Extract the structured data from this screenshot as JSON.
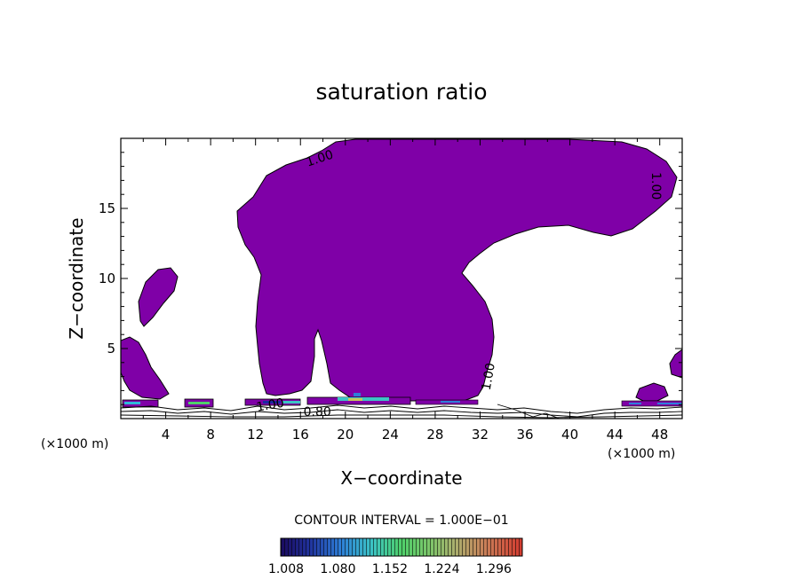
{
  "chart_data": {
    "type": "heatmap",
    "title": "saturation ratio",
    "xlabel": "X−coordinate",
    "ylabel": "Z−coordinate",
    "x_unit": "(×1000 m)",
    "z_unit": "(×1000 m)",
    "xlim": [
      0,
      50
    ],
    "ylim": [
      0,
      20
    ],
    "x_ticks": [
      4,
      8,
      12,
      16,
      20,
      24,
      28,
      32,
      36,
      40,
      44,
      48
    ],
    "y_ticks": [
      5,
      10,
      15
    ],
    "fill_color": "#7f00a7",
    "contour_labels": [
      {
        "text": "1.00",
        "x": 17.7,
        "z": 18.6,
        "angle": -18
      },
      {
        "text": "1.00",
        "x": 47.7,
        "z": 16.6,
        "angle": 90
      },
      {
        "text": "1.00",
        "x": 32.7,
        "z": 3.0,
        "angle": -80
      },
      {
        "text": "1.00",
        "x": 13.3,
        "z": 1.0,
        "angle": -10
      },
      {
        "text": "0.80",
        "x": 17.5,
        "z": 0.5,
        "angle": 0
      }
    ],
    "contour_interval_label": "CONTOUR INTERVAL = 1.000E−01",
    "colorbar": {
      "labels": [
        "1.008",
        "1.080",
        "1.152",
        "1.224",
        "1.296"
      ],
      "min": 1.008,
      "max": 1.296
    }
  }
}
